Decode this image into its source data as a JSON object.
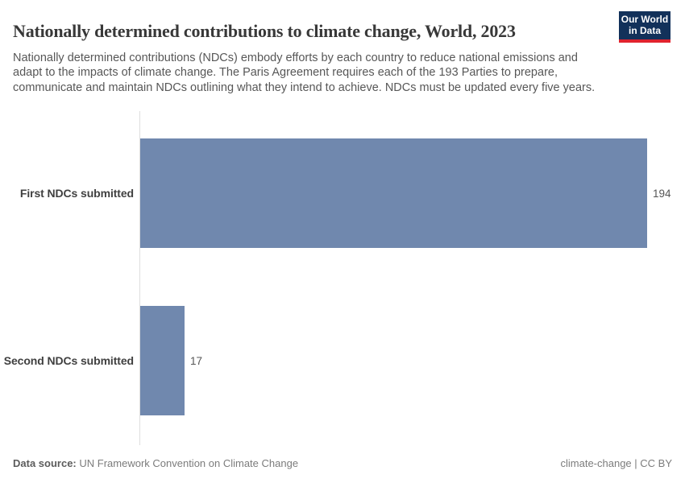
{
  "header": {
    "title": "Nationally determined contributions to climate change, World, 2023",
    "subtitle": "Nationally determined contributions (NDCs) embody efforts by each country to reduce national emissions and adapt to the impacts of climate change. The Paris Agreement requires each of the 193 Parties to prepare, communicate and maintain NDCs outlining what they intend to achieve. NDCs must be updated every five years."
  },
  "logo": {
    "line1": "Our World",
    "line2": "in Data",
    "background_color": "#12315a",
    "accent_color": "#e0232e"
  },
  "chart_data": {
    "type": "bar",
    "orientation": "horizontal",
    "categories": [
      "First NDCs submitted",
      "Second NDCs submitted"
    ],
    "values": [
      194,
      17
    ],
    "value_labels": [
      "194",
      "17"
    ],
    "bar_color": "#7088ae",
    "axis_line_color": "#dedede",
    "x_range": [
      0,
      194
    ],
    "gridlines": false,
    "legend": "none"
  },
  "footer": {
    "datasource_label": "Data source:",
    "datasource": "UN Framework Convention on Climate Change",
    "license": "climate-change | CC BY"
  }
}
